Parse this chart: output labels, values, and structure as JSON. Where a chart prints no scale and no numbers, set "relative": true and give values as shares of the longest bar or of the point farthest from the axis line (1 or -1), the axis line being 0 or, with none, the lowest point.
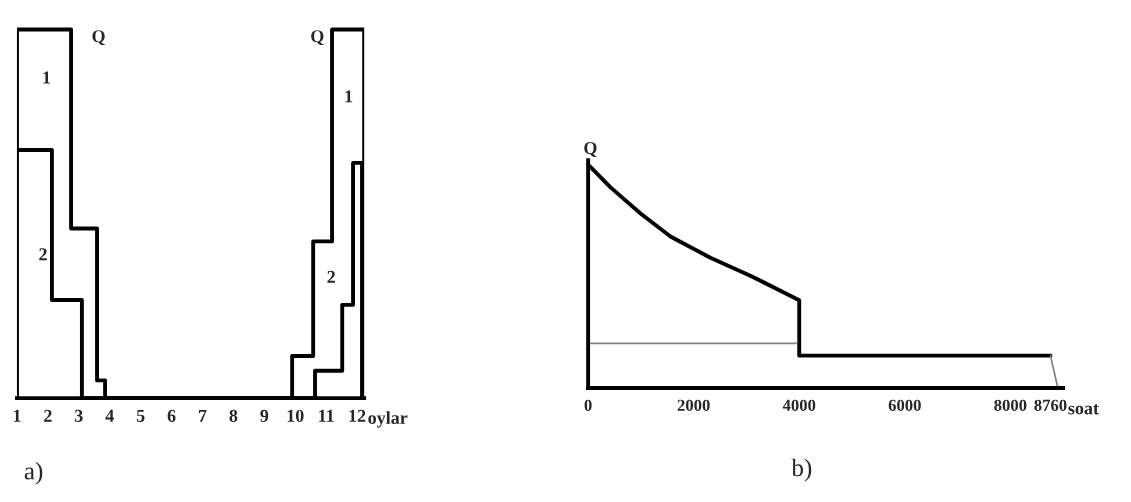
{
  "chart_data": [
    {
      "type": "line",
      "title": "a)",
      "xlabel": "oylar",
      "relative": true,
      "tick_labels": "x",
      "xlim": [
        1,
        12.23
      ],
      "xticks": [
        1,
        2,
        3,
        4,
        5,
        6,
        7,
        8,
        9,
        10,
        11,
        12
      ],
      "series": [
        {
          "color": "#000000",
          "x": [
            1,
            1,
            2.75,
            2.75,
            3.59,
            3.59,
            3.85,
            3.85,
            9.9,
            9.9,
            10.58,
            10.58,
            11.19,
            11.19,
            12.23,
            12.23
          ],
          "values": [
            0,
            1,
            1,
            0.46,
            0.46,
            0.048,
            0.048,
            0,
            0,
            0.114,
            0.114,
            0.425,
            0.425,
            1,
            1,
            0
          ]
        },
        {
          "color": "#000000",
          "x": [
            1,
            2.13,
            2.13,
            3.1,
            3.1,
            10.64,
            10.64,
            11.52,
            11.52,
            11.87,
            11.87,
            12.16,
            12.16
          ],
          "values": [
            0.673,
            0.673,
            0.266,
            0.266,
            0,
            0,
            0.074,
            0.074,
            0.253,
            0.253,
            0.638,
            0.638,
            0
          ]
        }
      ],
      "annotations": [
        "Q",
        "Q",
        "1",
        "2",
        "1",
        "2"
      ]
    },
    {
      "type": "line",
      "title": "b)",
      "xlabel": "soat",
      "ylabel": "Q",
      "relative": true,
      "tick_labels": "x",
      "xlim": [
        0,
        9000
      ],
      "xticks": [
        0,
        2000,
        4000,
        6000,
        8000,
        8760
      ],
      "series": [
        {
          "color": "#000000",
          "x": [
            0,
            425,
            993,
            1560,
            2317,
            3073,
            4000,
            4000,
            8760
          ],
          "values": [
            1,
            0.898,
            0.781,
            0.678,
            0.583,
            0.503,
            0.393,
            0.145,
            0.145
          ]
        },
        {
          "color": "#808080",
          "x": [
            0,
            3950
          ],
          "values": [
            0.2,
            0.2
          ]
        },
        {
          "color": "#808080",
          "x": [
            8760,
            8900
          ],
          "values": [
            0.145,
            0
          ]
        }
      ]
    }
  ]
}
